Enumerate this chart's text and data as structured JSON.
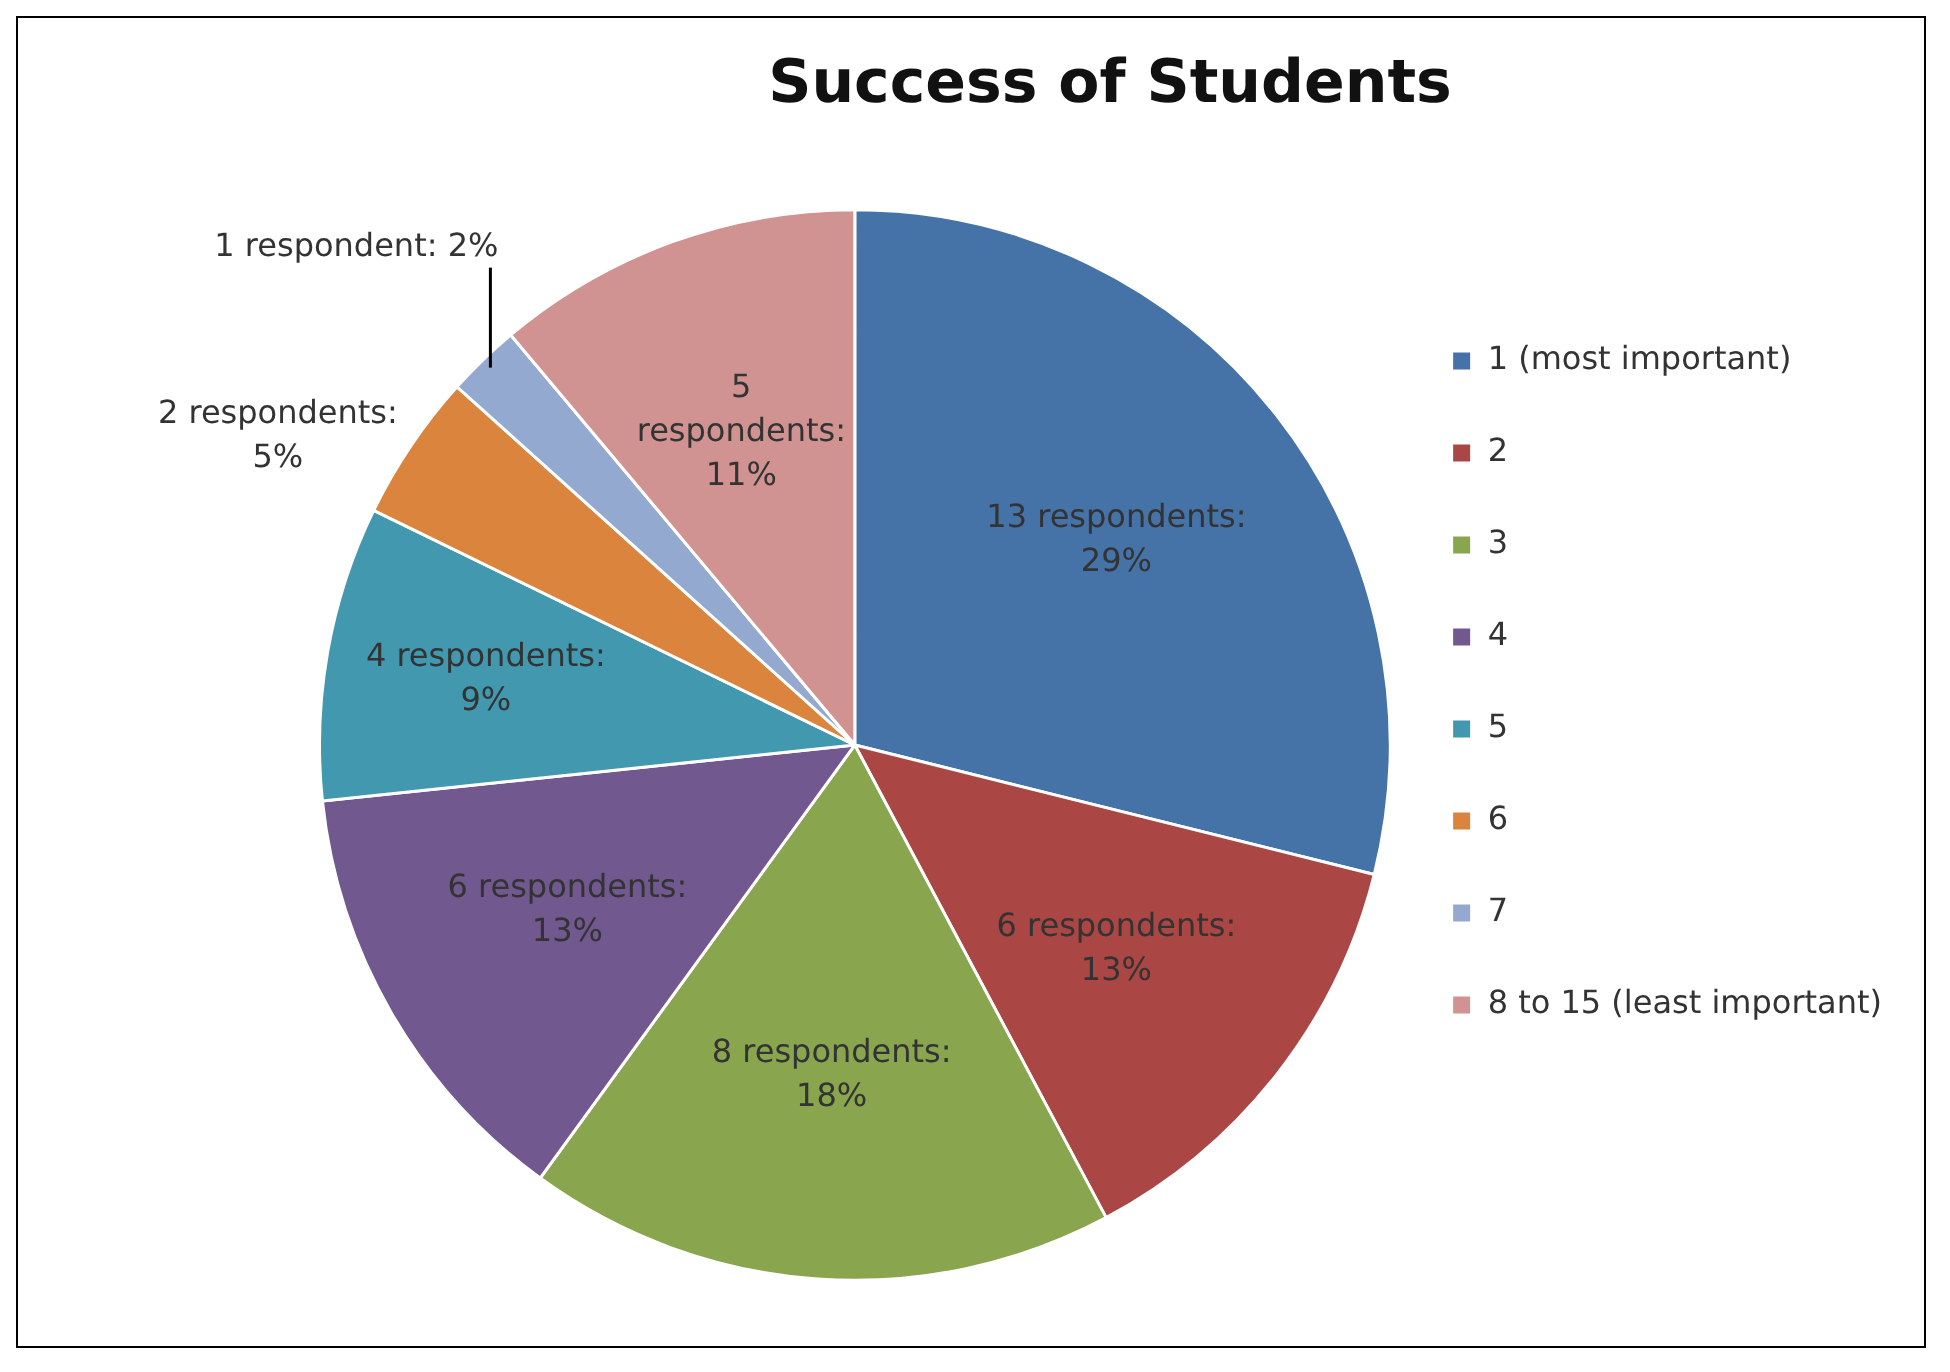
{
  "chart_data": {
    "type": "pie",
    "title": "Success of Students",
    "categories": [
      "1 (most important)",
      "2",
      "3",
      "4",
      "5",
      "6",
      "7",
      "8 to 15 (least important)"
    ],
    "values": [
      13,
      6,
      8,
      6,
      4,
      2,
      1,
      5
    ],
    "value_labels": [
      "13 respondents: 29%",
      "6 respondents: 13%",
      "8 respondents: 18%",
      "6 respondents: 13%",
      "4 respondents: 9%",
      "2 respondents: 5%",
      "1 respondent: 2%",
      "5 respondents: 11%"
    ],
    "colors": [
      "#4572a7",
      "#aa4643",
      "#89a54e",
      "#71588f",
      "#4198af",
      "#db843d",
      "#93a9cf",
      "#d19392"
    ],
    "legend": "right"
  }
}
